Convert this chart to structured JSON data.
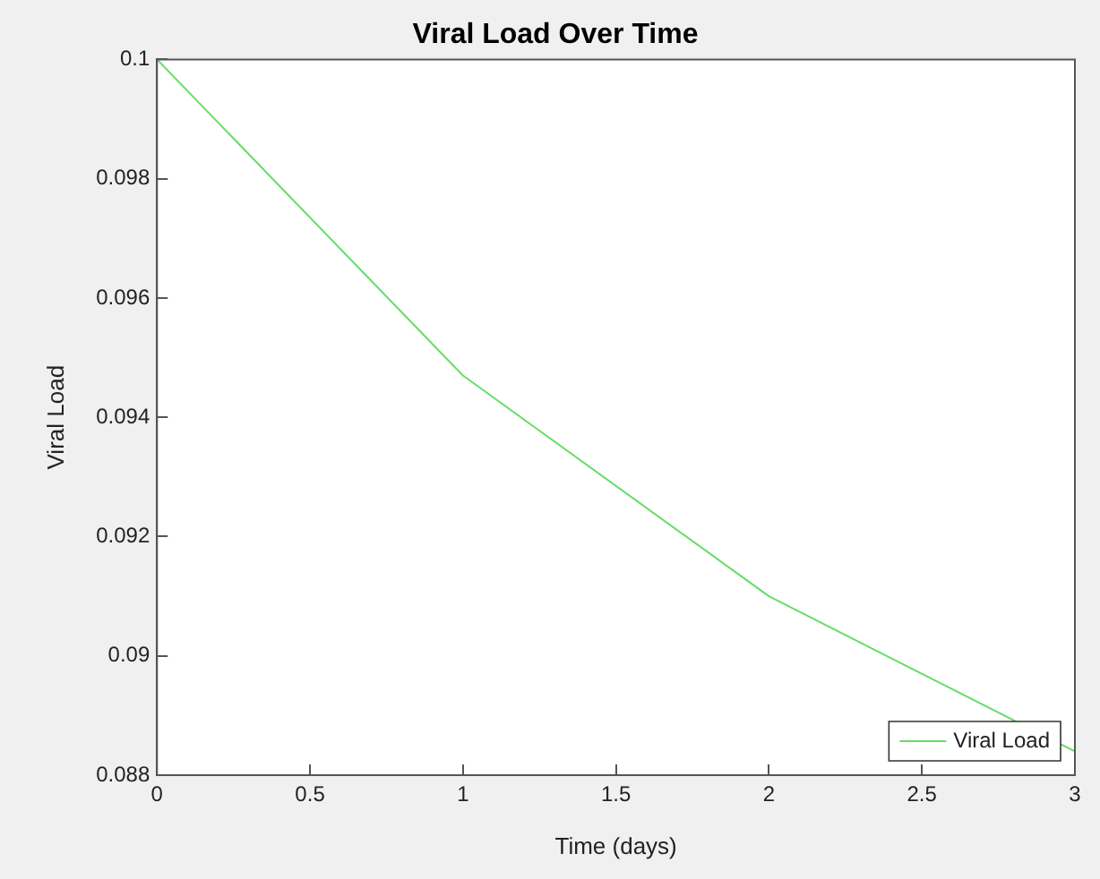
{
  "chart_data": {
    "type": "line",
    "title": "Viral Load Over Time",
    "xlabel": "Time (days)",
    "ylabel": "Viral Load",
    "x": [
      0,
      1,
      2,
      3
    ],
    "series": [
      {
        "name": "Viral Load",
        "color": "#66dd66",
        "values": [
          0.1,
          0.0947,
          0.091,
          0.0884
        ]
      }
    ],
    "xlim": [
      0,
      3
    ],
    "xticks": [
      0,
      0.5,
      1,
      1.5,
      2,
      2.5,
      3
    ],
    "ylim": [
      0.088,
      0.1
    ],
    "yticks": [
      0.088,
      0.09,
      0.092,
      0.094,
      0.096,
      0.098,
      0.1
    ],
    "grid": false,
    "legend": "bottom right",
    "marker": "none",
    "line_style": "solid"
  }
}
